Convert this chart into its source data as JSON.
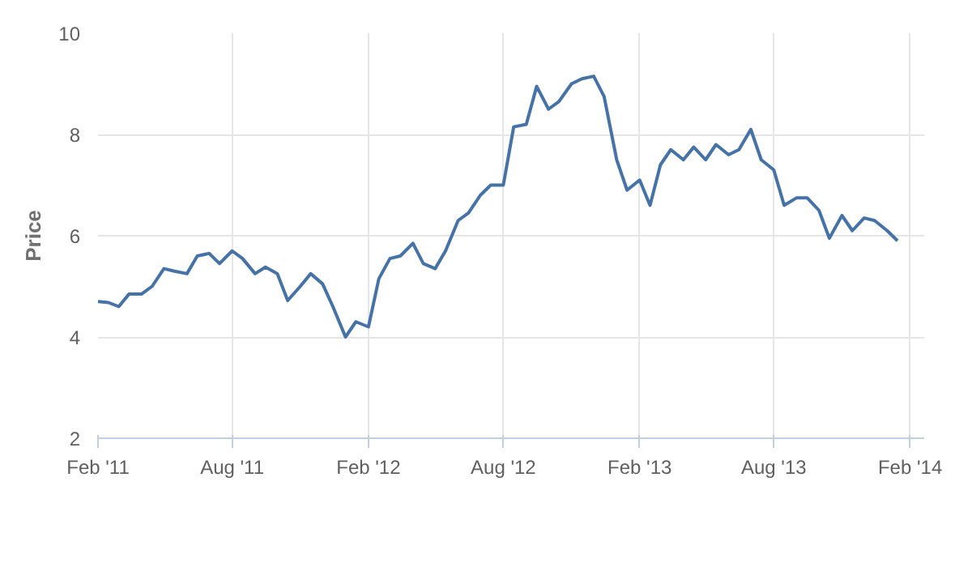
{
  "chart_data": {
    "type": "line",
    "ylabel": "Price",
    "ylim": [
      2,
      10
    ],
    "yticks": [
      2,
      4,
      6,
      8,
      10
    ],
    "xlim": [
      "2011-02-01",
      "2014-02-20"
    ],
    "xticks": [
      {
        "value": "2011-02-01",
        "label": "Feb '11"
      },
      {
        "value": "2011-08-01",
        "label": "Aug '11"
      },
      {
        "value": "2012-02-01",
        "label": "Feb '12"
      },
      {
        "value": "2012-08-01",
        "label": "Aug '12"
      },
      {
        "value": "2013-02-01",
        "label": "Feb '13"
      },
      {
        "value": "2013-08-01",
        "label": "Aug '13"
      },
      {
        "value": "2014-02-01",
        "label": "Feb '14"
      }
    ],
    "grid": true,
    "marker": "none",
    "line_style": "solid",
    "x": [
      "2011-02-01",
      "2011-02-15",
      "2011-03-01",
      "2011-03-15",
      "2011-04-01",
      "2011-04-15",
      "2011-05-01",
      "2011-05-15",
      "2011-06-01",
      "2011-06-15",
      "2011-07-01",
      "2011-07-15",
      "2011-08-01",
      "2011-08-15",
      "2011-09-01",
      "2011-09-15",
      "2011-10-01",
      "2011-10-15",
      "2011-11-01",
      "2011-11-15",
      "2011-12-01",
      "2011-12-15",
      "2012-01-01",
      "2012-01-15",
      "2012-02-01",
      "2012-02-15",
      "2012-03-01",
      "2012-03-15",
      "2012-04-01",
      "2012-04-15",
      "2012-05-01",
      "2012-05-15",
      "2012-06-01",
      "2012-06-15",
      "2012-07-01",
      "2012-07-15",
      "2012-08-01",
      "2012-08-15",
      "2012-09-01",
      "2012-09-15",
      "2012-10-01",
      "2012-10-15",
      "2012-11-01",
      "2012-11-15",
      "2012-12-01",
      "2012-12-15",
      "2013-01-01",
      "2013-01-15",
      "2013-02-01",
      "2013-02-15",
      "2013-03-01",
      "2013-03-15",
      "2013-04-01",
      "2013-04-15",
      "2013-05-01",
      "2013-05-15",
      "2013-06-01",
      "2013-06-15",
      "2013-07-01",
      "2013-07-15",
      "2013-08-01",
      "2013-08-15",
      "2013-09-01",
      "2013-09-15",
      "2013-10-01",
      "2013-10-15",
      "2013-11-01",
      "2013-11-15",
      "2013-12-01",
      "2013-12-15",
      "2014-01-01",
      "2014-01-15"
    ],
    "series": [
      {
        "color": "#4572a7",
        "values": [
          4.7,
          4.68,
          4.6,
          4.85,
          4.85,
          5.0,
          5.35,
          5.3,
          5.25,
          5.6,
          5.65,
          5.45,
          5.7,
          5.55,
          5.25,
          5.38,
          5.25,
          4.72,
          5.0,
          5.25,
          5.05,
          4.6,
          4.0,
          4.3,
          4.2,
          5.15,
          5.55,
          5.6,
          5.85,
          5.45,
          5.35,
          5.7,
          6.3,
          6.45,
          6.8,
          7.0,
          7.0,
          8.15,
          8.2,
          8.95,
          8.5,
          8.65,
          9.0,
          9.1,
          9.15,
          8.75,
          7.5,
          6.9,
          7.1,
          6.6,
          7.4,
          7.7,
          7.5,
          7.75,
          7.5,
          7.8,
          7.6,
          7.7,
          8.1,
          7.5,
          7.3,
          6.6,
          6.75,
          6.75,
          6.5,
          5.95,
          6.4,
          6.1,
          6.35,
          6.3,
          6.1,
          5.9
        ]
      }
    ]
  }
}
